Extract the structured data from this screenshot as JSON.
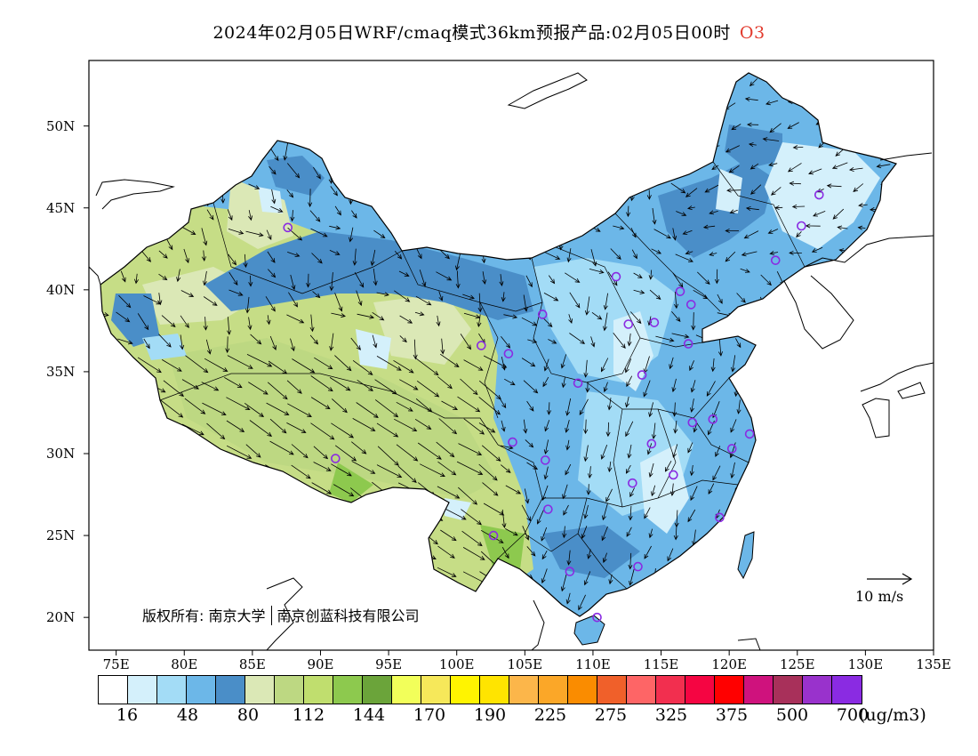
{
  "title": {
    "text": "2024年02月05日WRF/cmaq模式36km预报产品:02月05日00时",
    "species": "O3"
  },
  "axes": {
    "lon_labels": [
      "75E",
      "80E",
      "85E",
      "90E",
      "95E",
      "100E",
      "105E",
      "110E",
      "115E",
      "120E",
      "125E",
      "130E",
      "135E"
    ],
    "lat_labels": [
      "50N",
      "45N",
      "40N",
      "35N",
      "30N",
      "25N",
      "20N"
    ],
    "lon_range": [
      73,
      135
    ],
    "lat_range": [
      18,
      54
    ]
  },
  "copyright": {
    "prefix": "版权所有:",
    "org1": "南京大学",
    "org2": "南京创蓝科技有限公司"
  },
  "wind_reference": {
    "label": "10 m/s"
  },
  "colorbar": {
    "colors": [
      "#ffffff",
      "#d4f0fb",
      "#a3dcf6",
      "#6cb7e8",
      "#4a8ec8",
      "#dbe8b6",
      "#bdd882",
      "#c0de6e",
      "#8dc94e",
      "#6ba43a",
      "#f2ff5a",
      "#f6e85a",
      "#fff400",
      "#ffe400",
      "#fcb64a",
      "#fba728",
      "#fa8c00",
      "#f0602a",
      "#fe6566",
      "#f22f4f",
      "#f50542",
      "#ff0000",
      "#cf127d",
      "#a8305a",
      "#9932cc",
      "#8a2be2"
    ],
    "labels": [
      "16",
      "48",
      "80",
      "112",
      "144",
      "170",
      "190",
      "225",
      "275",
      "325",
      "375",
      "500",
      "700"
    ],
    "unit": "(ug/m3)"
  },
  "stations": [
    {
      "lon": 87.6,
      "lat": 43.8
    },
    {
      "lon": 91.1,
      "lat": 29.7
    },
    {
      "lon": 101.8,
      "lat": 36.6
    },
    {
      "lon": 103.8,
      "lat": 36.1
    },
    {
      "lon": 106.3,
      "lat": 38.5
    },
    {
      "lon": 108.9,
      "lat": 34.3
    },
    {
      "lon": 111.7,
      "lat": 40.8
    },
    {
      "lon": 112.6,
      "lat": 37.9
    },
    {
      "lon": 114.5,
      "lat": 38.0
    },
    {
      "lon": 116.4,
      "lat": 39.9
    },
    {
      "lon": 117.2,
      "lat": 39.1
    },
    {
      "lon": 117.0,
      "lat": 36.7
    },
    {
      "lon": 113.6,
      "lat": 34.8
    },
    {
      "lon": 117.3,
      "lat": 31.9
    },
    {
      "lon": 118.8,
      "lat": 32.1
    },
    {
      "lon": 120.2,
      "lat": 30.3
    },
    {
      "lon": 121.5,
      "lat": 31.2
    },
    {
      "lon": 114.3,
      "lat": 30.6
    },
    {
      "lon": 112.9,
      "lat": 28.2
    },
    {
      "lon": 115.9,
      "lat": 28.7
    },
    {
      "lon": 119.3,
      "lat": 26.1
    },
    {
      "lon": 113.3,
      "lat": 23.1
    },
    {
      "lon": 108.3,
      "lat": 22.8
    },
    {
      "lon": 110.3,
      "lat": 20.0
    },
    {
      "lon": 106.5,
      "lat": 29.6
    },
    {
      "lon": 104.1,
      "lat": 30.7
    },
    {
      "lon": 106.7,
      "lat": 26.6
    },
    {
      "lon": 102.7,
      "lat": 25.0
    },
    {
      "lon": 126.6,
      "lat": 45.8
    },
    {
      "lon": 125.3,
      "lat": 43.9
    },
    {
      "lon": 123.4,
      "lat": 41.8
    }
  ]
}
